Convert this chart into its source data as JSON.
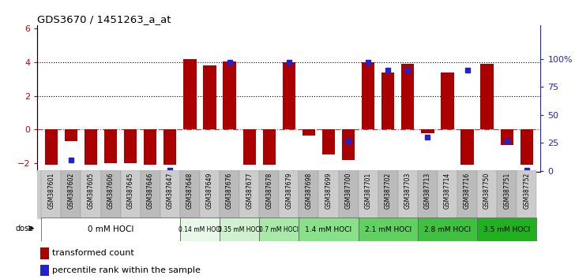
{
  "title": "GDS3670 / 1451263_a_at",
  "samples": [
    "GSM387601",
    "GSM387602",
    "GSM387605",
    "GSM387606",
    "GSM387645",
    "GSM387646",
    "GSM387647",
    "GSM387648",
    "GSM387649",
    "GSM387676",
    "GSM387677",
    "GSM387678",
    "GSM387679",
    "GSM387698",
    "GSM387699",
    "GSM387700",
    "GSM387701",
    "GSM387702",
    "GSM387703",
    "GSM387713",
    "GSM387714",
    "GSM387716",
    "GSM387750",
    "GSM387751",
    "GSM387752"
  ],
  "bar_values": [
    -2.1,
    -0.7,
    -2.1,
    -2.0,
    -2.0,
    -2.1,
    -2.1,
    4.2,
    3.8,
    4.05,
    -2.1,
    -2.1,
    4.0,
    -0.35,
    -1.5,
    -1.8,
    4.0,
    3.4,
    3.9,
    -0.2,
    3.4,
    -2.1,
    3.9,
    -0.9,
    -2.1
  ],
  "percentile_values": [
    null,
    10,
    null,
    null,
    null,
    null,
    1,
    null,
    null,
    97,
    null,
    null,
    97,
    null,
    null,
    27,
    97,
    90,
    90,
    30,
    null,
    90,
    null,
    27,
    1
  ],
  "dose_groups": [
    {
      "label": "0 mM HOCl",
      "start": 0,
      "end": 7,
      "color": "#ffffff"
    },
    {
      "label": "0.14 mM HOCl",
      "start": 7,
      "end": 9,
      "color": "#e0f5e0"
    },
    {
      "label": "0.35 mM HOCl",
      "start": 9,
      "end": 11,
      "color": "#c8eec8"
    },
    {
      "label": "0.7 mM HOCl",
      "start": 11,
      "end": 13,
      "color": "#a0e0a0"
    },
    {
      "label": "1.4 mM HOCl",
      "start": 13,
      "end": 16,
      "color": "#80d880"
    },
    {
      "label": "2.1 mM HOCl",
      "start": 16,
      "end": 19,
      "color": "#60cc60"
    },
    {
      "label": "2.8 mM HOCl",
      "start": 19,
      "end": 22,
      "color": "#44c044"
    },
    {
      "label": "3.5 mM HOCl",
      "start": 22,
      "end": 25,
      "color": "#22b422"
    }
  ],
  "bar_color": "#aa0000",
  "blue_color": "#2222cc",
  "ylim_left": [
    -2.5,
    6.2
  ],
  "ylim_right": [
    -0.5,
    130
  ],
  "yticks_left": [
    -2,
    0,
    2,
    4,
    6
  ],
  "yticks_right": [
    0,
    25,
    50,
    75,
    100
  ],
  "ytick_labels_right": [
    "0",
    "25",
    "50",
    "75",
    "100%"
  ],
  "background_color": "#ffffff",
  "tick_bg_color": "#cccccc"
}
